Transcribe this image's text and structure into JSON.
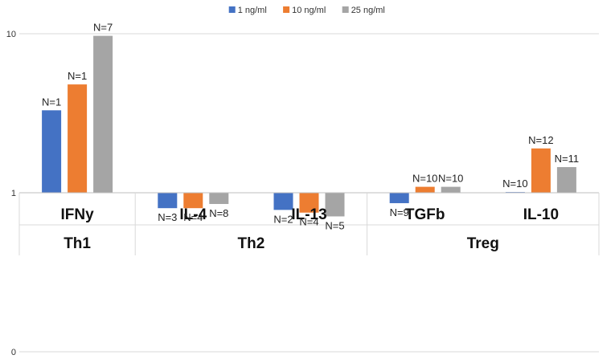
{
  "chart_data": {
    "type": "bar",
    "scale": "log",
    "ylim": [
      0.1,
      10
    ],
    "yticks": [
      {
        "value": 10,
        "label": "10"
      },
      {
        "value": 1,
        "label": "1"
      },
      {
        "value": 0.1,
        "label": "0"
      }
    ],
    "grid": true,
    "legend_position": "top-center",
    "categories": [
      "IFNy",
      "IL-4",
      "IL-13",
      "TGFb",
      "IL-10"
    ],
    "groups": [
      {
        "label": "Th1",
        "categories": [
          "IFNy"
        ]
      },
      {
        "label": "Th2",
        "categories": [
          "IL-4",
          "IL-13"
        ]
      },
      {
        "label": "Treg",
        "categories": [
          "TGFb",
          "IL-10"
        ]
      }
    ],
    "series": [
      {
        "name": "1 ng/ml",
        "color": "#4472c4",
        "values": [
          3.3,
          0.8,
          0.78,
          0.86,
          1.01
        ],
        "labels": [
          "N=1",
          "N=3",
          "N=2",
          "N=9",
          "N=10"
        ]
      },
      {
        "name": "10 ng/ml",
        "color": "#ed7d31",
        "values": [
          4.8,
          0.8,
          0.75,
          1.09,
          1.9
        ],
        "labels": [
          "N=1",
          "N=4",
          "N=4",
          "N=10",
          "N=12"
        ]
      },
      {
        "name": "25 ng/ml",
        "color": "#a5a5a5",
        "values": [
          9.7,
          0.85,
          0.71,
          1.09,
          1.45
        ],
        "labels": [
          "N=7",
          "N=8",
          "N=5",
          "N=10",
          "N=11"
        ]
      }
    ]
  }
}
